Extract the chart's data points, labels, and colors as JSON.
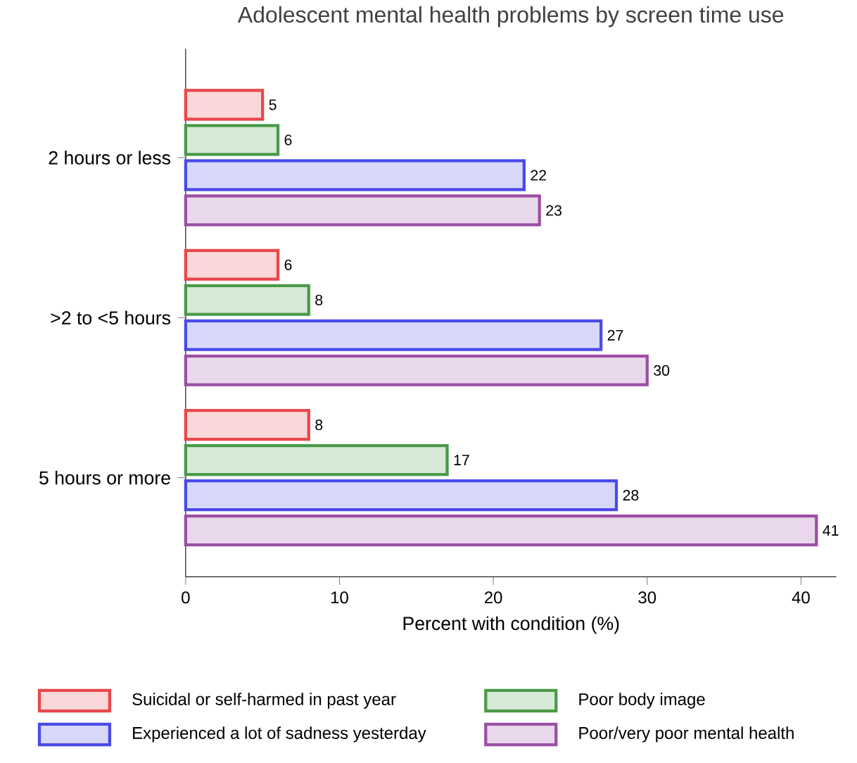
{
  "chart_data": {
    "type": "bar",
    "orientation": "horizontal",
    "title": "Adolescent mental health problems by screen time use",
    "xlabel": "Percent with condition (%)",
    "categories": [
      "2 hours or less",
      ">2 to <5 hours",
      "5 hours or more"
    ],
    "series": [
      {
        "name": "Suicidal or self-harmed in past year",
        "color": "#e8474c",
        "values": [
          5,
          6,
          8
        ]
      },
      {
        "name": "Poor body image",
        "color": "#4a9a48",
        "values": [
          6,
          8,
          17
        ]
      },
      {
        "name": "Experienced a lot of sadness yesterday",
        "color": "#4a4ae8",
        "values": [
          22,
          27,
          28
        ]
      },
      {
        "name": "Poor/very poor mental health",
        "color": "#9b4fa5",
        "values": [
          23,
          30,
          41
        ]
      }
    ],
    "xlim": [
      0,
      42.3
    ],
    "xticks": [
      0,
      10,
      20,
      30,
      40
    ],
    "data_labels": true,
    "grid": false,
    "legend": "bottom"
  }
}
